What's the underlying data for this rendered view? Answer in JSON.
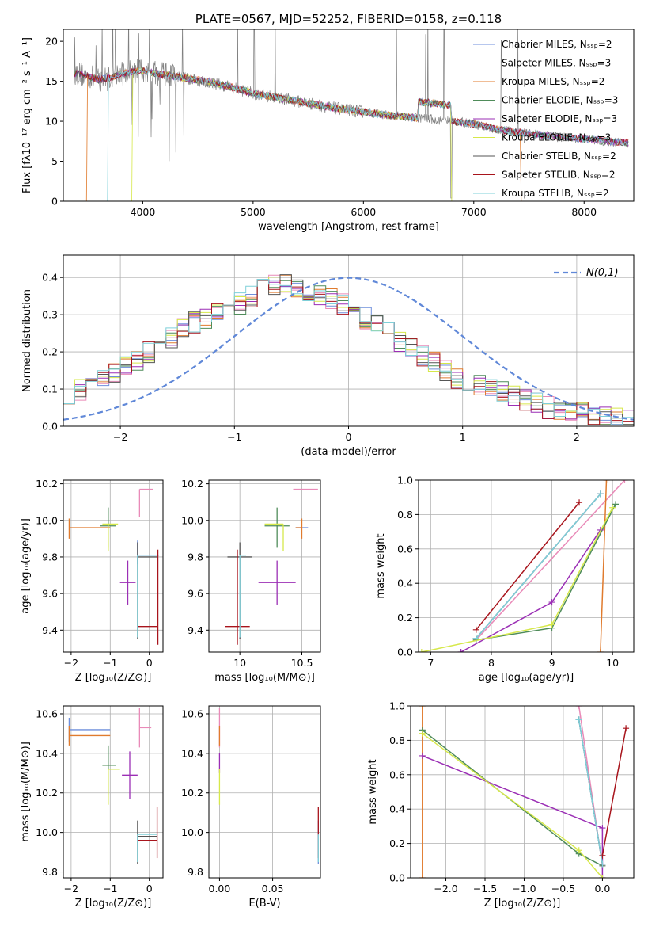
{
  "colors": {
    "chabrier_miles": "#6f8fdc",
    "salpeter_miles": "#e98ab8",
    "kroupa_miles": "#e07b2e",
    "chabrier_elodie": "#4f8c5a",
    "salpeter_elodie": "#9b2fb5",
    "kroupa_elodie": "#d6e84a",
    "chabrier_stelib": "#555555",
    "salpeter_stelib": "#a8141c",
    "kroupa_stelib": "#7fd0d9",
    "data": "#808080",
    "gauss": "#6088d8"
  },
  "chart_data": [
    {
      "type": "line",
      "title": "PLATE=0567, MJD=52252, FIBERID=0158, z=0.118",
      "xlabel": "wavelength [Angstrom, rest frame]",
      "ylabel": "Flux [fλ10⁻¹⁷ erg cm⁻² s⁻¹ A⁻¹]",
      "xlim": [
        3280,
        8450
      ],
      "ylim": [
        0,
        21.5
      ],
      "xticks": [
        4000,
        5000,
        6000,
        7000,
        8000
      ],
      "yticks": [
        0,
        5,
        10,
        15,
        20
      ],
      "legend_position": "top-right",
      "legend": [
        "Chabrier MILES, Nₛₛₚ=2",
        "Salpeter MILES, Nₛₛₚ=3",
        "Kroupa MILES, Nₛₛₚ=2",
        "Chabrier ELODIE, Nₛₛₚ=3",
        "Salpeter ELODIE, Nₛₛₚ=3",
        "Kroupa ELODIE, Nₛₛₚ=3",
        "Chabrier STELIB, Nₛₛₚ=2",
        "Salpeter STELIB, Nₛₛₚ=2",
        "Kroupa STELIB, Nₛₛₚ=2"
      ],
      "continuum": {
        "wavelength": [
          3400,
          3500,
          3600,
          3700,
          3800,
          3900,
          4000,
          4200,
          4400,
          4600,
          4800,
          5000,
          5200,
          5400,
          5600,
          5800,
          6000,
          6200,
          6400,
          6600,
          6800,
          7000,
          7200,
          7400,
          7600,
          7800,
          8000,
          8200,
          8400
        ],
        "flux": [
          16.0,
          15.6,
          15.2,
          15.4,
          15.9,
          16.2,
          16.3,
          15.8,
          15.4,
          14.9,
          14.3,
          13.5,
          13.0,
          12.5,
          12.0,
          11.5,
          11.2,
          10.8,
          10.5,
          10.3,
          10.0,
          9.7,
          9.0,
          8.6,
          8.3,
          8.0,
          7.8,
          7.5,
          7.3
        ]
      },
      "cutoffs": [
        {
          "series": "kroupa_miles",
          "min_wave": 3500,
          "max_wave": 7420
        },
        {
          "series": "kroupa_stelib",
          "min_wave": 3690,
          "max_wave": 8450
        },
        {
          "series": "kroupa_elodie",
          "min_wave": 3910,
          "max_wave": 6790
        }
      ]
    },
    {
      "type": "step",
      "xlabel": "(data-model)/error",
      "ylabel": "Normed distribution",
      "xlim": [
        -2.5,
        2.5
      ],
      "ylim": [
        0,
        0.46
      ],
      "xticks": [
        -2,
        -1,
        0,
        1,
        2
      ],
      "yticks": [
        0.0,
        0.1,
        0.2,
        0.3,
        0.4
      ],
      "legend_position": "top-right",
      "gauss_label": "N(0,1)",
      "bin_width": 0.1,
      "bins_start": -2.5,
      "template": [
        0.09,
        0.1,
        0.11,
        0.12,
        0.14,
        0.16,
        0.18,
        0.2,
        0.22,
        0.24,
        0.26,
        0.28,
        0.29,
        0.3,
        0.31,
        0.33,
        0.35,
        0.37,
        0.38,
        0.38,
        0.37,
        0.36,
        0.35,
        0.34,
        0.33,
        0.31,
        0.29,
        0.27,
        0.25,
        0.23,
        0.21,
        0.19,
        0.17,
        0.15,
        0.13,
        0.12,
        0.11,
        0.1,
        0.09,
        0.08,
        0.07,
        0.06,
        0.05,
        0.045,
        0.04,
        0.035,
        0.03,
        0.025,
        0.02,
        0.02
      ]
    },
    {
      "type": "errorbar",
      "xlabel": "Z [log₁₀(Z/Z⊙)]",
      "ylabel": "age  [log₁₀(age/yr)]",
      "xlim": [
        -2.2,
        0.35
      ],
      "ylim": [
        9.28,
        10.22
      ],
      "xticks": [
        -2,
        -1,
        0
      ],
      "yticks": [
        9.4,
        9.6,
        9.8,
        10.0,
        10.2
      ],
      "points": [
        {
          "series": "chabrier_miles",
          "x": -0.3,
          "xerr": [
            0.0,
            0.55
          ],
          "y": 9.81,
          "yerr": [
            0.05,
            0.08
          ]
        },
        {
          "series": "salpeter_miles",
          "x": -0.25,
          "xerr": [
            0.0,
            0.35
          ],
          "y": 10.17,
          "yerr": [
            0.15,
            0.0
          ]
        },
        {
          "series": "kroupa_miles",
          "x": -2.05,
          "xerr": [
            0.0,
            1.05
          ],
          "y": 9.96,
          "yerr": [
            0.06,
            0.05
          ]
        },
        {
          "series": "chabrier_elodie",
          "x": -1.05,
          "xerr": [
            0.2,
            0.2
          ],
          "y": 9.97,
          "yerr": [
            0.12,
            0.1
          ]
        },
        {
          "series": "salpeter_elodie",
          "x": -0.55,
          "xerr": [
            0.2,
            0.2
          ],
          "y": 9.66,
          "yerr": [
            0.12,
            0.12
          ]
        },
        {
          "series": "kroupa_elodie",
          "x": -1.05,
          "xerr": [
            0.15,
            0.25
          ],
          "y": 9.98,
          "yerr": [
            0.15,
            0.0
          ]
        },
        {
          "series": "chabrier_stelib",
          "x": -0.3,
          "xerr": [
            0.0,
            0.5
          ],
          "y": 9.8,
          "yerr": [
            0.45,
            0.08
          ]
        },
        {
          "series": "salpeter_stelib",
          "x": 0.22,
          "xerr": [
            0.5,
            0.0
          ],
          "y": 9.42,
          "yerr": [
            0.1,
            0.42
          ]
        },
        {
          "series": "kroupa_stelib",
          "x": -0.3,
          "xerr": [
            0.0,
            0.5
          ],
          "y": 9.81,
          "yerr": [
            0.45,
            0.0
          ]
        }
      ]
    },
    {
      "type": "errorbar",
      "xlabel": "mass [log₁₀(M/M⊙)]",
      "ylabel": "",
      "xlim": [
        9.75,
        10.65
      ],
      "ylim": [
        9.28,
        10.22
      ],
      "xticks": [
        10.0,
        10.5
      ],
      "yticks": [
        9.4,
        9.6,
        9.8,
        10.0,
        10.2
      ],
      "points": [
        {
          "series": "chabrier_miles",
          "x": 10.55,
          "xerr": [
            0.1,
            0.0
          ],
          "y": 9.96,
          "yerr": [
            0.0,
            0.0
          ]
        },
        {
          "series": "salpeter_miles",
          "x": 10.53,
          "xerr": [
            0.1,
            0.1
          ],
          "y": 10.17,
          "yerr": [
            0.0,
            0.0
          ]
        },
        {
          "series": "kroupa_miles",
          "x": 10.5,
          "xerr": [
            0.05,
            0.0
          ],
          "y": 9.96,
          "yerr": [
            0.06,
            0.05
          ]
        },
        {
          "series": "chabrier_elodie",
          "x": 10.3,
          "xerr": [
            0.1,
            0.1
          ],
          "y": 9.97,
          "yerr": [
            0.12,
            0.1
          ]
        },
        {
          "series": "salpeter_elodie",
          "x": 10.3,
          "xerr": [
            0.15,
            0.15
          ],
          "y": 9.66,
          "yerr": [
            0.12,
            0.12
          ]
        },
        {
          "series": "kroupa_elodie",
          "x": 10.35,
          "xerr": [
            0.15,
            0.0
          ],
          "y": 9.98,
          "yerr": [
            0.15,
            0.0
          ]
        },
        {
          "series": "chabrier_stelib",
          "x": 10.0,
          "xerr": [
            0.1,
            0.1
          ],
          "y": 9.8,
          "yerr": [
            0.45,
            0.08
          ]
        },
        {
          "series": "salpeter_stelib",
          "x": 9.98,
          "xerr": [
            0.1,
            0.1
          ],
          "y": 9.42,
          "yerr": [
            0.1,
            0.42
          ]
        },
        {
          "series": "kroupa_stelib",
          "x": 10.0,
          "xerr": [
            0.0,
            0.05
          ],
          "y": 9.81,
          "yerr": [
            0.45,
            0.0
          ]
        }
      ]
    },
    {
      "type": "line",
      "xlabel": "age  [log₁₀(age/yr)]",
      "ylabel": "mass weight",
      "xlim": [
        6.8,
        10.35
      ],
      "ylim": [
        0,
        1
      ],
      "xticks": [
        7,
        8,
        9,
        10
      ],
      "yticks": [
        0.0,
        0.2,
        0.4,
        0.6,
        0.8,
        1.0
      ],
      "series": [
        {
          "series": "chabrier_miles",
          "x": [
            7.75,
            9.8
          ],
          "y": [
            0.08,
            0.92
          ]
        },
        {
          "series": "salpeter_miles",
          "x": [
            7.75,
            10.2
          ],
          "y": [
            0.07,
            1.0
          ]
        },
        {
          "series": "kroupa_miles",
          "x": [
            9.8,
            9.9
          ],
          "y": [
            0.0,
            1.0
          ]
        },
        {
          "series": "chabrier_elodie",
          "x": [
            7.75,
            9.0,
            10.05
          ],
          "y": [
            0.07,
            0.14,
            0.86
          ]
        },
        {
          "series": "salpeter_elodie",
          "x": [
            7.5,
            9.0,
            9.8
          ],
          "y": [
            0.0,
            0.29,
            0.71
          ]
        },
        {
          "series": "kroupa_elodie",
          "x": [
            6.85,
            9.0,
            10.0
          ],
          "y": [
            0.0,
            0.16,
            0.84
          ]
        },
        {
          "series": "chabrier_stelib",
          "x": [
            7.75,
            9.8
          ],
          "y": [
            0.08,
            0.92
          ]
        },
        {
          "series": "salpeter_stelib",
          "x": [
            7.75,
            9.45
          ],
          "y": [
            0.13,
            0.87
          ]
        },
        {
          "series": "kroupa_stelib",
          "x": [
            7.75,
            9.8
          ],
          "y": [
            0.08,
            0.92
          ]
        }
      ]
    },
    {
      "type": "errorbar",
      "xlabel": "Z [log₁₀(Z/Z⊙)]",
      "ylabel": "mass [log₁₀(M/M⊙)]",
      "xlim": [
        -2.2,
        0.35
      ],
      "ylim": [
        9.77,
        10.64
      ],
      "xticks": [
        -2,
        -1,
        0
      ],
      "yticks": [
        9.8,
        10.0,
        10.2,
        10.4,
        10.6
      ],
      "points": [
        {
          "series": "chabrier_miles",
          "x": -2.05,
          "xerr": [
            0.0,
            1.05
          ],
          "y": 10.52,
          "yerr": [
            0.06,
            0.06
          ]
        },
        {
          "series": "salpeter_miles",
          "x": -0.25,
          "xerr": [
            0.0,
            0.3
          ],
          "y": 10.53,
          "yerr": [
            0.1,
            0.1
          ]
        },
        {
          "series": "kroupa_miles",
          "x": -2.05,
          "xerr": [
            0.0,
            1.05
          ],
          "y": 10.49,
          "yerr": [
            0.05,
            0.05
          ]
        },
        {
          "series": "chabrier_elodie",
          "x": -1.05,
          "xerr": [
            0.15,
            0.2
          ],
          "y": 10.34,
          "yerr": [
            0.15,
            0.1
          ]
        },
        {
          "series": "salpeter_elodie",
          "x": -0.5,
          "xerr": [
            0.2,
            0.2
          ],
          "y": 10.29,
          "yerr": [
            0.12,
            0.12
          ]
        },
        {
          "series": "kroupa_elodie",
          "x": -1.05,
          "xerr": [
            0.0,
            0.3
          ],
          "y": 10.32,
          "yerr": [
            0.18,
            0.0
          ]
        },
        {
          "series": "chabrier_stelib",
          "x": -0.3,
          "xerr": [
            0.0,
            0.5
          ],
          "y": 9.98,
          "yerr": [
            0.14,
            0.08
          ]
        },
        {
          "series": "salpeter_stelib",
          "x": 0.2,
          "xerr": [
            0.5,
            0.0
          ],
          "y": 9.96,
          "yerr": [
            0.09,
            0.17
          ]
        },
        {
          "series": "kroupa_stelib",
          "x": -0.3,
          "xerr": [
            0.0,
            0.5
          ],
          "y": 9.99,
          "yerr": [
            0.14,
            0.0
          ]
        }
      ]
    },
    {
      "type": "errorbar",
      "xlabel": "E(B-V)",
      "ylabel": "",
      "xlim": [
        -0.01,
        0.095
      ],
      "ylim": [
        9.77,
        10.64
      ],
      "xticks": [
        0.0,
        0.05
      ],
      "xtick_labels": [
        "0.00",
        "0.05"
      ],
      "yticks": [
        9.8,
        10.0,
        10.2,
        10.4,
        10.6
      ],
      "points": [
        {
          "series": "salpeter_miles",
          "x": 0.0,
          "xerr": [
            0,
            0
          ],
          "y": 10.53,
          "yerr": [
            0.1,
            0.1
          ]
        },
        {
          "series": "kroupa_miles",
          "x": 0.0,
          "xerr": [
            0,
            0
          ],
          "y": 10.49,
          "yerr": [
            0.05,
            0.05
          ]
        },
        {
          "series": "salpeter_elodie",
          "x": 0.0,
          "xerr": [
            0,
            0
          ],
          "y": 10.35,
          "yerr": [
            0.05,
            0.05
          ]
        },
        {
          "series": "kroupa_elodie",
          "x": 0.0,
          "xerr": [
            0,
            0
          ],
          "y": 10.32,
          "yerr": [
            0.18,
            0.0
          ]
        },
        {
          "series": "chabrier_miles",
          "x": 0.093,
          "xerr": [
            0,
            0
          ],
          "y": 9.98,
          "yerr": [
            0.14,
            0.08
          ]
        },
        {
          "series": "salpeter_stelib",
          "x": 0.093,
          "xerr": [
            0,
            0
          ],
          "y": 9.96,
          "yerr": [
            0.09,
            0.17
          ]
        },
        {
          "series": "kroupa_stelib",
          "x": 0.093,
          "xerr": [
            0,
            0
          ],
          "y": 9.99,
          "yerr": [
            0.14,
            0.0
          ]
        }
      ]
    },
    {
      "type": "line",
      "xlabel": "Z [log₁₀(Z/Z⊙)]",
      "ylabel": "mass weight",
      "xlim": [
        -2.45,
        0.4
      ],
      "ylim": [
        0,
        1
      ],
      "xticks": [
        -2.0,
        -1.5,
        -1.0,
        -0.5,
        0.0
      ],
      "xtick_labels": [
        "−2.0",
        "−1.5",
        "−1.0",
        "−0.5",
        "0.0"
      ],
      "yticks": [
        0.0,
        0.2,
        0.4,
        0.6,
        0.8,
        1.0
      ],
      "series": [
        {
          "series": "chabrier_miles",
          "x": [
            -0.3,
            0.0
          ],
          "y": [
            0.92,
            0.08
          ]
        },
        {
          "series": "salpeter_miles",
          "x": [
            -0.3,
            0.0
          ],
          "y": [
            1.0,
            0.07
          ]
        },
        {
          "series": "kroupa_miles",
          "x": [
            -2.3,
            -2.3
          ],
          "y": [
            0.0,
            1.0
          ]
        },
        {
          "series": "chabrier_elodie",
          "x": [
            -2.3,
            -0.3,
            0.0
          ],
          "y": [
            0.86,
            0.14,
            0.07
          ]
        },
        {
          "series": "salpeter_elodie",
          "x": [
            -2.3,
            0.0,
            0.0
          ],
          "y": [
            0.71,
            0.29,
            0.0
          ]
        },
        {
          "series": "kroupa_elodie",
          "x": [
            -2.3,
            -0.3,
            0.0
          ],
          "y": [
            0.84,
            0.16,
            0.0
          ]
        },
        {
          "series": "chabrier_stelib",
          "x": [
            -0.3,
            0.0
          ],
          "y": [
            0.92,
            0.08
          ]
        },
        {
          "series": "salpeter_stelib",
          "x": [
            0.0,
            0.3
          ],
          "y": [
            0.13,
            0.87
          ]
        },
        {
          "series": "kroupa_stelib",
          "x": [
            -0.3,
            0.0
          ],
          "y": [
            0.92,
            0.08
          ]
        }
      ]
    }
  ]
}
